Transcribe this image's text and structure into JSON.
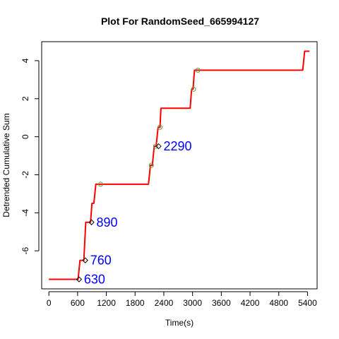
{
  "chart_data": {
    "type": "line",
    "title": "Plot For RandomSeed_665994127",
    "xlabel": "Time(s)",
    "ylabel": "Detrended Cumulative Sum",
    "xlim": [
      -150,
      5600
    ],
    "ylim": [
      -8.0,
      5.0
    ],
    "x_ticks": [
      0,
      600,
      1200,
      1800,
      2400,
      3000,
      3600,
      4200,
      4800,
      5400
    ],
    "y_ticks": [
      -6,
      -4,
      -2,
      0,
      2,
      4
    ],
    "colors": {
      "line": "#ff0000",
      "circle_markers": "#5a9a3a",
      "diamond_markers": "#000000",
      "annotations": "#0000ff"
    },
    "line_series": {
      "x": [
        0,
        610,
        650,
        730,
        770,
        790,
        830,
        870,
        900,
        940,
        980,
        1020,
        1060,
        1100,
        1160,
        2080,
        2120,
        2160,
        2200,
        2240,
        2280,
        2320,
        2340,
        2360,
        2380,
        2950,
        2980,
        3010,
        3040,
        3080,
        3120,
        5300,
        5340,
        5440
      ],
      "y": [
        -7.5,
        -7.5,
        -6.5,
        -6.5,
        -4.5,
        -4.5,
        -4.5,
        -4.5,
        -3.5,
        -3.5,
        -2.5,
        -2.5,
        -2.5,
        -2.5,
        -2.5,
        -2.5,
        -1.5,
        -1.5,
        -0.5,
        -0.5,
        0.5,
        0.5,
        1.5,
        1.5,
        1.5,
        1.5,
        2.5,
        2.5,
        3.5,
        3.5,
        3.5,
        3.5,
        4.5,
        4.5
      ]
    },
    "circle_points": {
      "x": [
        1080,
        2140,
        2230,
        2320,
        3020,
        3110
      ],
      "y": [
        -2.5,
        -1.5,
        -0.5,
        0.5,
        2.5,
        3.5
      ]
    },
    "diamond_points": {
      "x": [
        630,
        760,
        890,
        2290
      ],
      "y": [
        -7.5,
        -6.5,
        -4.5,
        -0.5
      ]
    },
    "annotations": [
      {
        "text": "630",
        "x": 630,
        "y": -7.5
      },
      {
        "text": "760",
        "x": 760,
        "y": -6.5
      },
      {
        "text": "890",
        "x": 890,
        "y": -4.5
      },
      {
        "text": "2290",
        "x": 2290,
        "y": -0.5
      }
    ],
    "grid": false,
    "legend": "none"
  }
}
